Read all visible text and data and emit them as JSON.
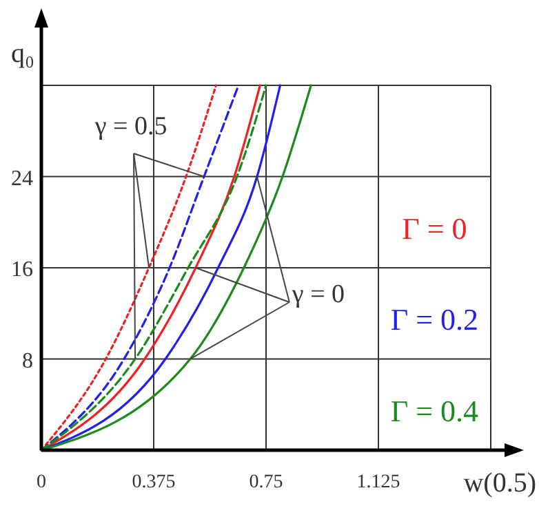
{
  "chart_data": {
    "type": "line",
    "xlabel": "w(0.5)",
    "ylabel": "q₀",
    "xlim": [
      0,
      1.5
    ],
    "ylim": [
      0,
      32
    ],
    "xticks": [
      0,
      0.375,
      0.75,
      1.125,
      {
        "value": 1.5,
        "label": null
      }
    ],
    "yticks": [
      8,
      16,
      24,
      {
        "value": 32,
        "label": null
      }
    ],
    "grid": true,
    "legend": "right",
    "series": [
      {
        "name": "Γ = 0",
        "color": "#ee2222",
        "line_style": "solid",
        "x": [
          0,
          0.345,
          0.515,
          0.644,
          0.73
        ],
        "values": [
          0,
          8,
          16,
          24,
          32
        ]
      },
      {
        "name": "Γ = 0.2",
        "color": "#1f1fee",
        "line_style": "solid",
        "x": [
          0,
          0.414,
          0.59,
          0.72,
          0.797
        ],
        "values": [
          0,
          8,
          16,
          24,
          32
        ]
      },
      {
        "name": "Γ = 0.4",
        "color": "#1a8a1a",
        "line_style": "solid",
        "x": [
          0,
          0.497,
          0.676,
          0.805,
          0.9
        ],
        "values": [
          0,
          8,
          16,
          24,
          32
        ]
      },
      {
        "color": "#ee2222",
        "line_style": "dotted",
        "x": [
          0,
          0.215,
          0.359,
          0.483,
          0.583
        ],
        "values": [
          0,
          8,
          16,
          24,
          32
        ]
      },
      {
        "color": "#1f1fee",
        "line_style": "dashed",
        "x": [
          0,
          0.276,
          0.428,
          0.543,
          0.658
        ],
        "values": [
          0,
          8,
          16,
          24,
          32
        ]
      },
      {
        "color": "#1a8a1a",
        "line_style": "dashed",
        "x": [
          0,
          0.313,
          0.49,
          0.653,
          0.75
        ],
        "values": [
          0,
          8,
          16,
          24,
          32
        ]
      }
    ],
    "annotations": [
      {
        "text": "γ = 0.5",
        "x": 0.359,
        "y": 16
      },
      {
        "text": "γ = 0",
        "x": 0.515,
        "y": 16
      }
    ]
  }
}
